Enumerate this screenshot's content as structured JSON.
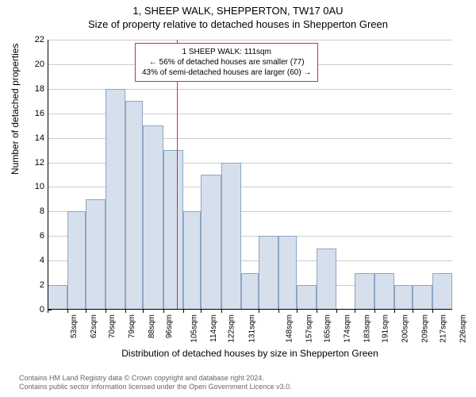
{
  "title": "1, SHEEP WALK, SHEPPERTON, TW17 0AU",
  "subtitle": "Size of property relative to detached houses in Shepperton Green",
  "y_axis_label": "Number of detached properties",
  "x_axis_label": "Distribution of detached houses by size in Shepperton Green",
  "footer_line1": "Contains HM Land Registry data © Crown copyright and database right 2024.",
  "footer_line2": "Contains public sector information licensed under the Open Government Licence v3.0.",
  "annotation": {
    "line1": "1 SHEEP WALK: 111sqm",
    "line2": "← 56% of detached houses are smaller (77)",
    "line3": "43% of semi-detached houses are larger (60) →"
  },
  "chart": {
    "type": "histogram",
    "ylim": [
      0,
      22
    ],
    "ytick_step": 2,
    "x_ticks": [
      "53sqm",
      "62sqm",
      "70sqm",
      "79sqm",
      "88sqm",
      "96sqm",
      "105sqm",
      "114sqm",
      "122sqm",
      "131sqm",
      "148sqm",
      "157sqm",
      "165sqm",
      "174sqm",
      "183sqm",
      "191sqm",
      "200sqm",
      "209sqm",
      "217sqm",
      "226sqm"
    ],
    "bars": [
      {
        "x": 53,
        "w": 9,
        "h": 2
      },
      {
        "x": 62,
        "w": 8,
        "h": 8
      },
      {
        "x": 70,
        "w": 9,
        "h": 9
      },
      {
        "x": 79,
        "w": 9,
        "h": 18
      },
      {
        "x": 88,
        "w": 8,
        "h": 17
      },
      {
        "x": 96,
        "w": 9,
        "h": 15
      },
      {
        "x": 105,
        "w": 9,
        "h": 13
      },
      {
        "x": 114,
        "w": 8,
        "h": 8
      },
      {
        "x": 122,
        "w": 9,
        "h": 11
      },
      {
        "x": 131,
        "w": 9,
        "h": 12
      },
      {
        "x": 140,
        "w": 8,
        "h": 3
      },
      {
        "x": 148,
        "w": 9,
        "h": 6
      },
      {
        "x": 157,
        "w": 8,
        "h": 6
      },
      {
        "x": 165,
        "w": 9,
        "h": 2
      },
      {
        "x": 174,
        "w": 9,
        "h": 5
      },
      {
        "x": 183,
        "w": 8,
        "h": 0
      },
      {
        "x": 191,
        "w": 9,
        "h": 3
      },
      {
        "x": 200,
        "w": 9,
        "h": 3
      },
      {
        "x": 209,
        "w": 8,
        "h": 2
      },
      {
        "x": 217,
        "w": 9,
        "h": 2
      },
      {
        "x": 226,
        "w": 9,
        "h": 3
      }
    ],
    "x_min": 53,
    "x_max": 235,
    "reference_x": 111,
    "bar_fill": "#d6e0ec",
    "bar_stroke": "#8ca5c5",
    "grid_color": "#cccccc",
    "ref_color": "#cc3333",
    "background": "#ffffff"
  }
}
